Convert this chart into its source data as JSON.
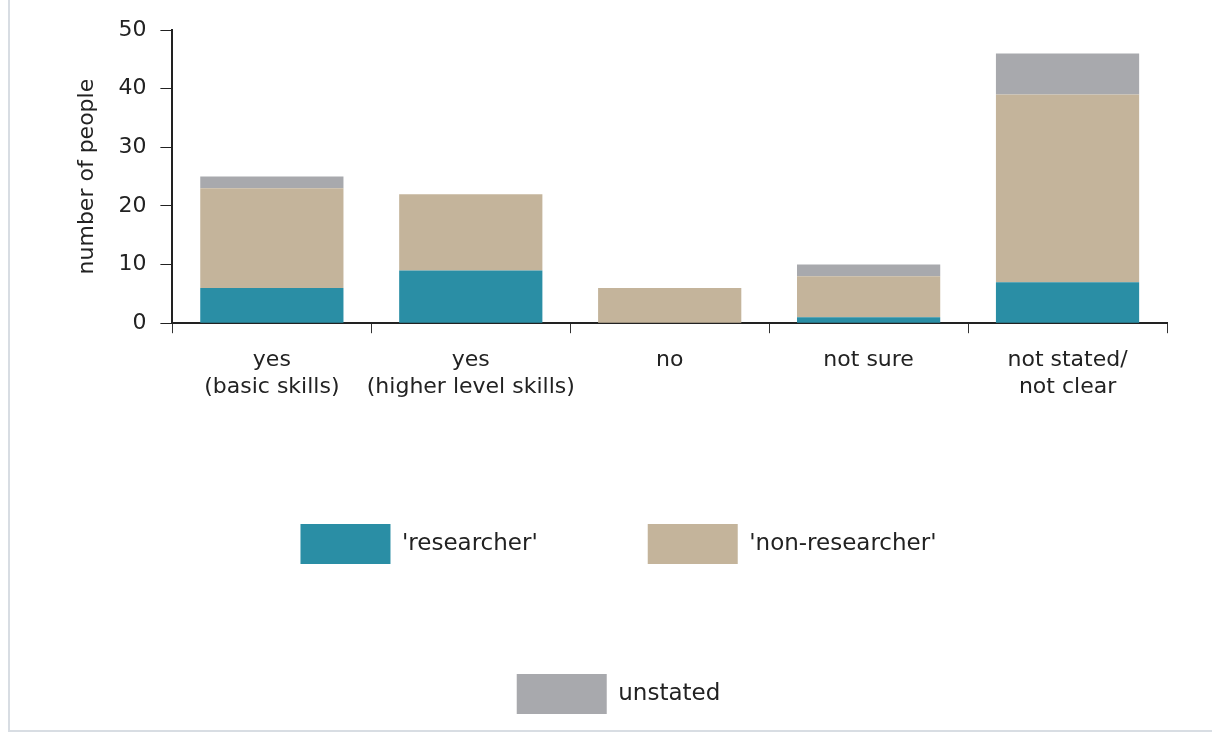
{
  "chart_data": {
    "type": "bar",
    "stacked": true,
    "ylabel": "number of people",
    "categories": [
      "yes\n(basic skills)",
      "yes\n(higher level skills)",
      "no",
      "not sure",
      "not stated/\nnot clear"
    ],
    "series": [
      {
        "name": "'researcher'",
        "color": "#2a8ea5",
        "values": [
          6,
          9,
          0,
          1,
          7
        ]
      },
      {
        "name": "'non-researcher'",
        "color": "#c4b49b",
        "values": [
          17,
          13,
          6,
          7,
          32
        ]
      },
      {
        "name": "unstated",
        "color": "#a8a9ad",
        "values": [
          2,
          0,
          0,
          2,
          7
        ]
      }
    ],
    "ylim": [
      0,
      50
    ],
    "yticks": [
      0,
      10,
      20,
      30,
      40,
      50
    ],
    "grid": false,
    "legend": "bottom"
  }
}
